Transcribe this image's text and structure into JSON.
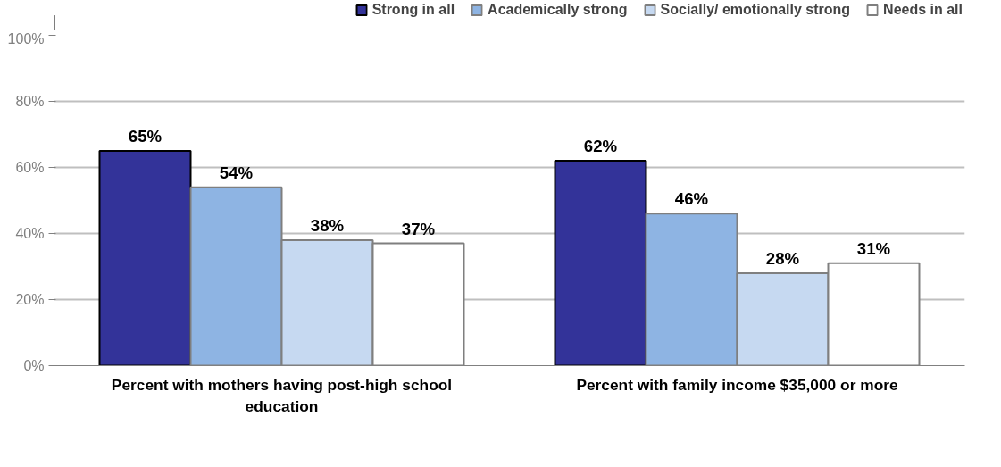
{
  "chart_data": {
    "type": "bar",
    "categories": [
      "Percent with mothers having post-high school education",
      "Percent with family income $35,000 or more"
    ],
    "series": [
      {
        "name": "Strong in all",
        "color": "#333399",
        "values": [
          65,
          62
        ],
        "value_labels": [
          "65%",
          "62%"
        ]
      },
      {
        "name": "Academically strong",
        "color": "#8eb4e3",
        "values": [
          54,
          46
        ],
        "value_labels": [
          "54%",
          "46%"
        ]
      },
      {
        "name": "Socially/ emotionally strong",
        "color": "#c6d9f1",
        "values": [
          38,
          28
        ],
        "value_labels": [
          "38%",
          "28%"
        ]
      },
      {
        "name": "Needs in all",
        "color": "#ffffff",
        "values": [
          37,
          31
        ],
        "value_labels": [
          "37%",
          "31%"
        ]
      }
    ],
    "ylim": [
      0,
      100
    ],
    "yticks": [
      {
        "value": 0,
        "label": "0%"
      },
      {
        "value": 20,
        "label": "20%"
      },
      {
        "value": 40,
        "label": "40%"
      },
      {
        "value": 60,
        "label": "60%"
      },
      {
        "value": 80,
        "label": "80%"
      },
      {
        "value": 100,
        "label": "100%"
      }
    ],
    "grid": "y",
    "legend": "top"
  }
}
